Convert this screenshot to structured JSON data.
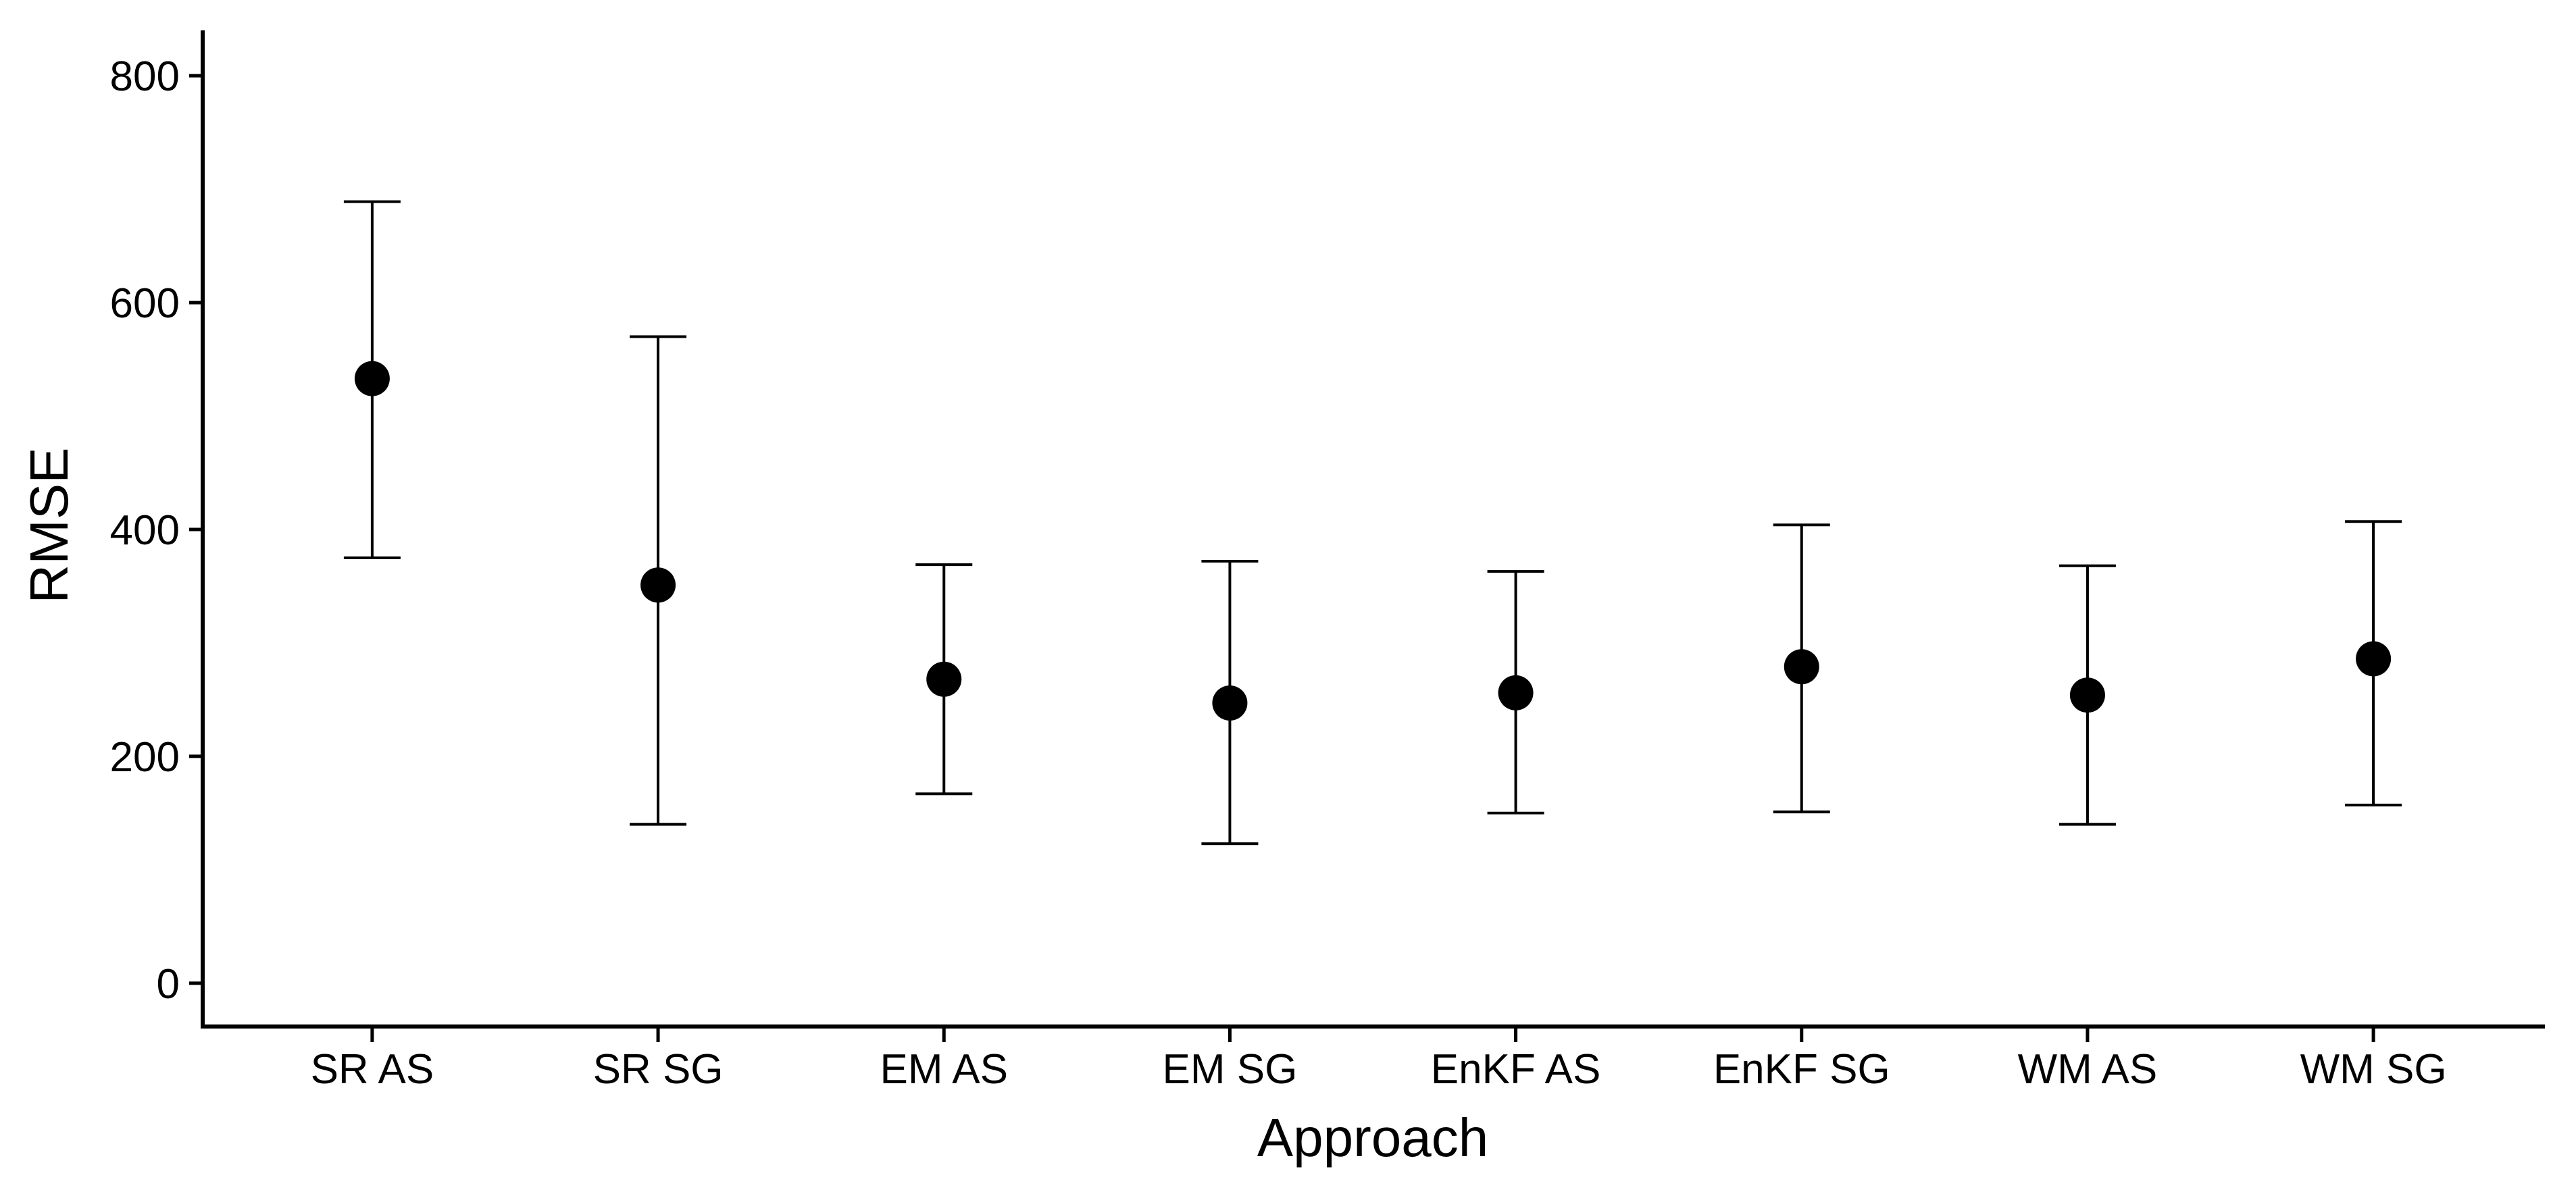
{
  "figure": {
    "background_color": "#ffffff",
    "foreground_color": "#000000"
  },
  "chart_data": {
    "type": "scatter",
    "subtype": "point-estimates-with-error-bars",
    "title": "",
    "xlabel": "Approach",
    "ylabel": "RMSE",
    "categories": [
      "SR AS",
      "SR SG",
      "EM AS",
      "EM SG",
      "EnKF AS",
      "EnKF SG",
      "WM AS",
      "WM SG"
    ],
    "series": [
      {
        "name": "mean",
        "values": [
          533,
          351,
          268,
          247,
          256,
          279,
          254,
          286
        ]
      },
      {
        "name": "lower",
        "values": [
          375,
          140,
          167,
          123,
          150,
          151,
          140,
          157
        ]
      },
      {
        "name": "upper",
        "values": [
          689,
          570,
          369,
          372,
          363,
          404,
          368,
          407
        ]
      }
    ],
    "ylim": [
      0,
      800
    ],
    "yticks": [
      0,
      200,
      400,
      600,
      800
    ],
    "ytick_labels": [
      "0",
      "200",
      "400",
      "600",
      "800"
    ],
    "grid": "off",
    "legend": "none",
    "marker": "filled-circle",
    "marker_color": "#000000",
    "errorbar_color": "#000000"
  }
}
